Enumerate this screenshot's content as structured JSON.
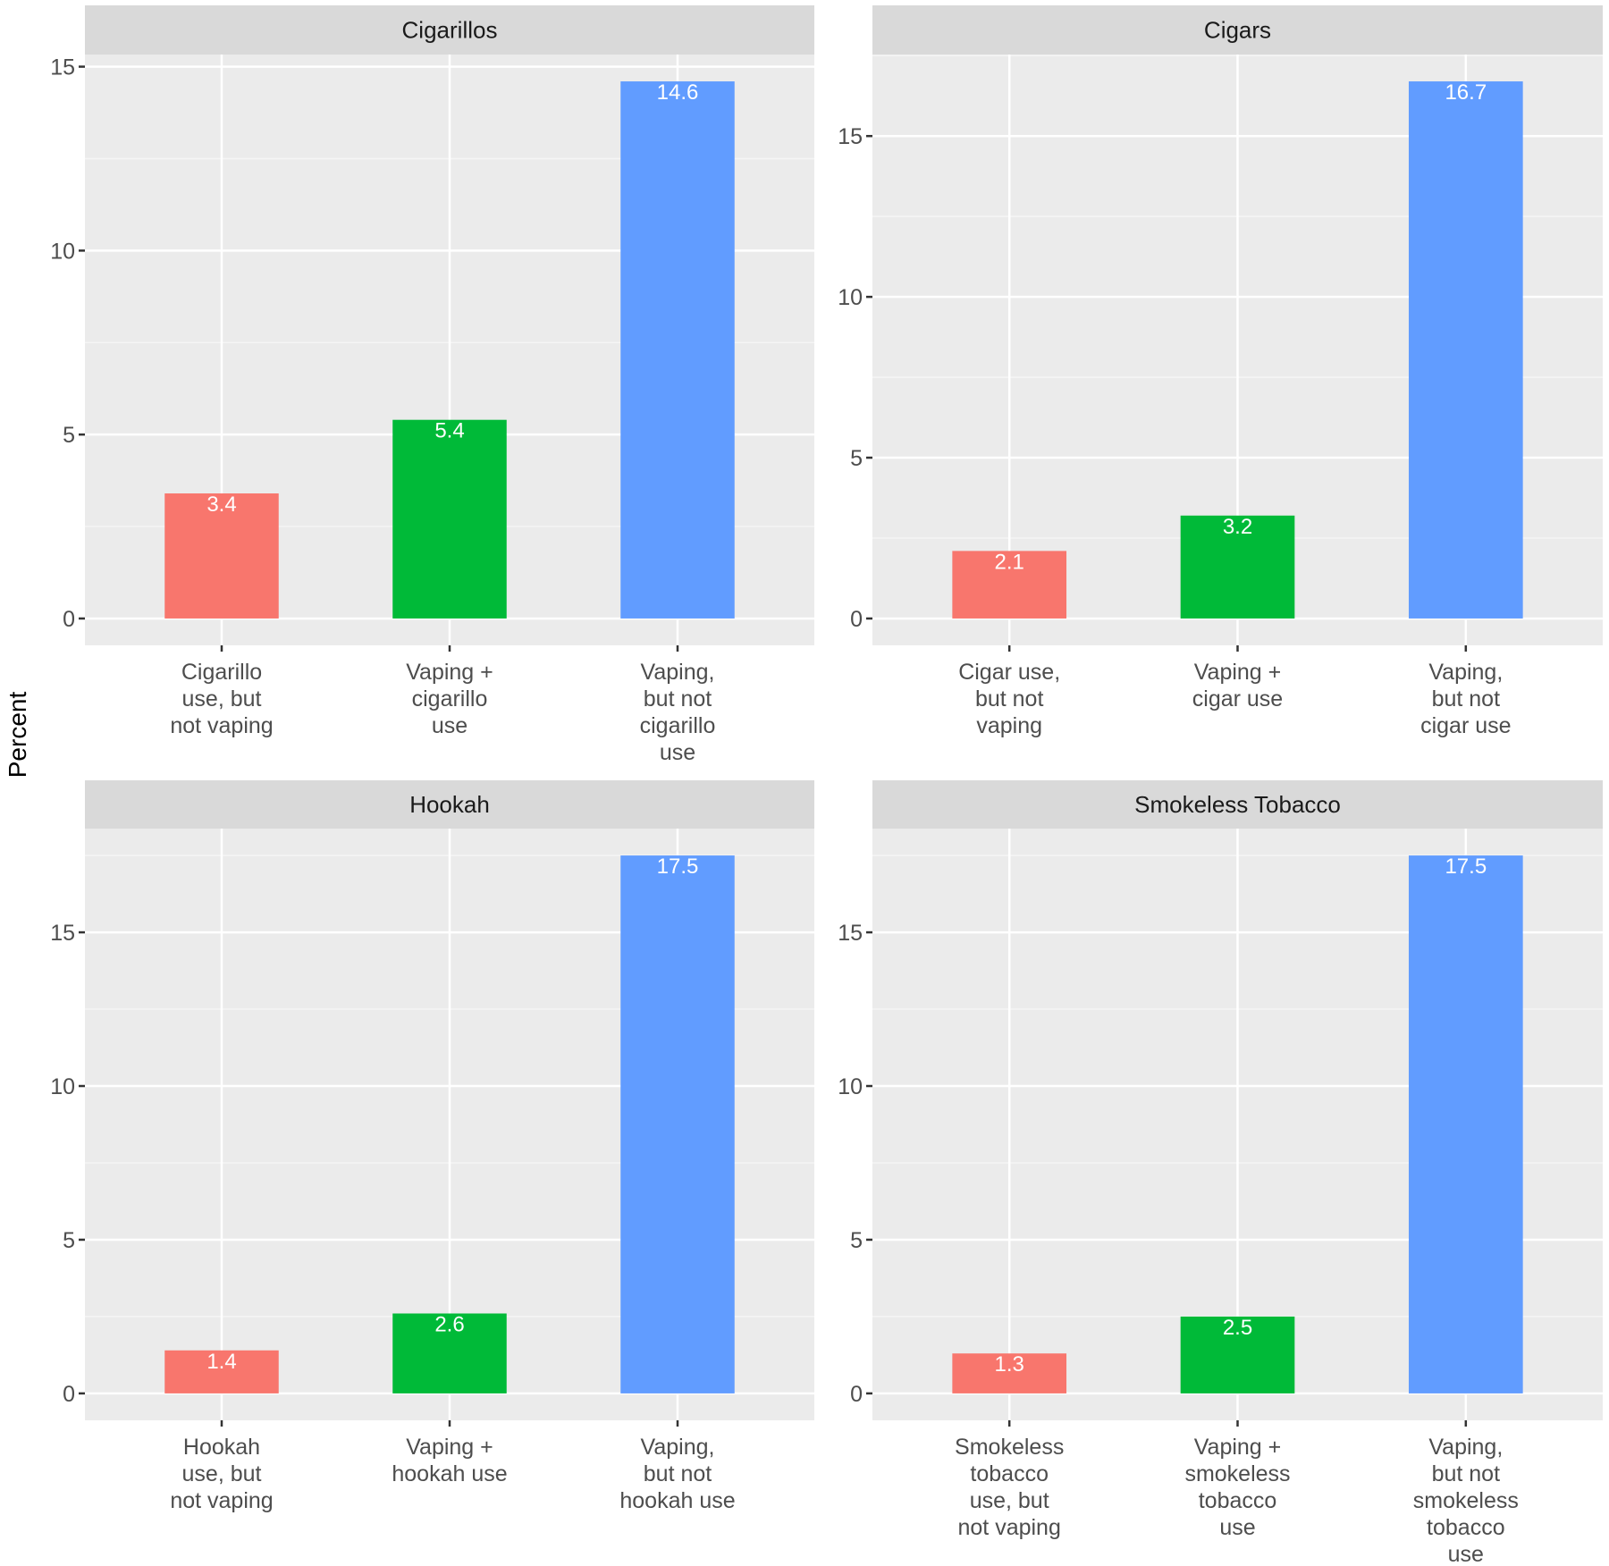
{
  "chart_data": {
    "type": "bar",
    "ylabel": "Percent",
    "xlabel": "",
    "grid": true,
    "legend": "none",
    "colors": [
      "#F8766D",
      "#00BA38",
      "#619CFF"
    ],
    "panels": [
      {
        "title": "Cigarillos",
        "categories": [
          "Cigarillo\nuse, but\nnot vaping",
          "Vaping +\ncigarillo\nuse",
          "Vaping,\nbut not\ncigarillo\nuse"
        ],
        "values": [
          3.4,
          5.4,
          14.6
        ],
        "value_labels": [
          "3.4",
          "5.4",
          "14.6"
        ],
        "ylim": [
          -0.73,
          15.33
        ],
        "yticks": [
          0,
          5,
          10,
          15
        ],
        "ytick_labels": [
          "0",
          "5",
          "10",
          "15"
        ]
      },
      {
        "title": "Cigars",
        "categories": [
          "Cigar use,\nbut not\nvaping",
          "Vaping +\ncigar use",
          "Vaping,\nbut not\ncigar use"
        ],
        "values": [
          2.1,
          3.2,
          16.7
        ],
        "value_labels": [
          "2.1",
          "3.2",
          "16.7"
        ],
        "ylim": [
          -0.835,
          17.535
        ],
        "yticks": [
          0,
          5,
          10,
          15
        ],
        "ytick_labels": [
          "0",
          "5",
          "10",
          "15"
        ]
      },
      {
        "title": "Hookah",
        "categories": [
          "Hookah\nuse, but\nnot vaping",
          "Vaping +\nhookah use",
          "Vaping,\nbut not\nhookah use"
        ],
        "values": [
          1.4,
          2.6,
          17.5
        ],
        "value_labels": [
          "1.4",
          "2.6",
          "17.5"
        ],
        "ylim": [
          -0.875,
          18.375
        ],
        "yticks": [
          0,
          5,
          10,
          15
        ],
        "ytick_labels": [
          "0",
          "5",
          "10",
          "15"
        ]
      },
      {
        "title": "Smokeless Tobacco",
        "categories": [
          "Smokeless\ntobacco\nuse, but\nnot vaping",
          "Vaping +\nsmokeless\ntobacco\nuse",
          "Vaping,\nbut not\nsmokeless\ntobacco\nuse"
        ],
        "values": [
          1.3,
          2.5,
          17.5
        ],
        "value_labels": [
          "1.3",
          "2.5",
          "17.5"
        ],
        "ylim": [
          -0.875,
          18.375
        ],
        "yticks": [
          0,
          5,
          10,
          15
        ],
        "ytick_labels": [
          "0",
          "5",
          "10",
          "15"
        ]
      }
    ]
  }
}
